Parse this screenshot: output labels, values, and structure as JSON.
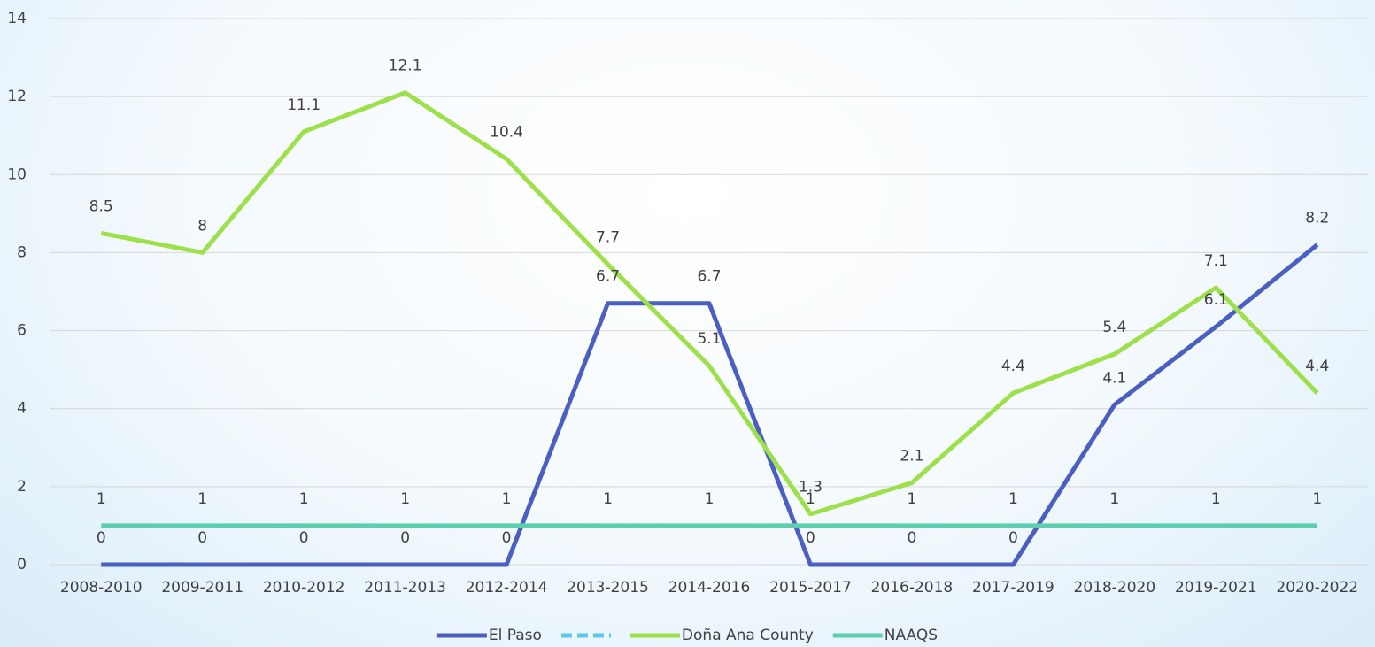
{
  "chart_data": {
    "type": "line",
    "categories": [
      "2008-2010",
      "2009-2011",
      "2010-2012",
      "2011-2013",
      "2012-2014",
      "2013-2015",
      "2014-2016",
      "2015-2017",
      "2016-2018",
      "2017-2019",
      "2018-2020",
      "2019-2021",
      "2020-2022"
    ],
    "series": [
      {
        "name": "El Paso",
        "color": "#4a5fc1",
        "values": [
          0,
          0,
          0,
          0,
          0,
          6.7,
          6.7,
          0,
          0,
          0,
          4.1,
          6.1,
          8.2
        ]
      },
      {
        "name": null,
        "color": "#5bc8e8",
        "dashed": true,
        "values": [
          null,
          null,
          null,
          null,
          null,
          null,
          null,
          null,
          null,
          null,
          null,
          null,
          null
        ]
      },
      {
        "name": "Doña Ana County",
        "color": "#9de04a",
        "values": [
          8.5,
          8,
          11.1,
          12.1,
          10.4,
          7.7,
          5.1,
          1.3,
          2.1,
          4.4,
          5.4,
          7.1,
          4.4
        ]
      },
      {
        "name": "NAAQS",
        "color": "#5ecfae",
        "values": [
          1,
          1,
          1,
          1,
          1,
          1,
          1,
          1,
          1,
          1,
          1,
          1,
          1
        ]
      }
    ],
    "ylim": [
      0,
      14
    ],
    "yticks": [
      0,
      2,
      4,
      6,
      8,
      10,
      12,
      14
    ],
    "grid": true,
    "legend": "bottom",
    "data_labels": true
  }
}
